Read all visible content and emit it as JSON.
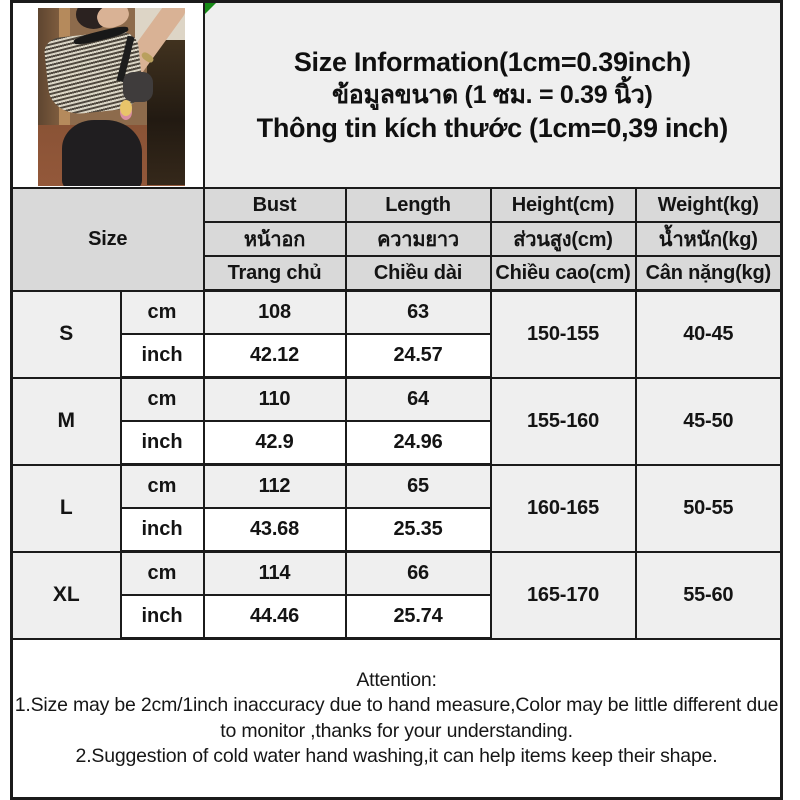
{
  "title": {
    "line1": "Size Information(1cm=0.39inch)",
    "line2": "ข้อมูลขนาด (1 ซม. = 0.39 นิ้ว)",
    "line3": "Thông tin kích thước (1cm=0,39 inch)"
  },
  "table": {
    "size_label": "Size",
    "unit_cm": "cm",
    "unit_inch": "inch",
    "columns": [
      {
        "en": "Bust",
        "th": "หน้าอก",
        "vi": "Trang chủ"
      },
      {
        "en": "Length",
        "th": "ความยาว",
        "vi": "Chiều dài"
      },
      {
        "en": "Height(cm)",
        "th": "ส่วนสูง(cm)",
        "vi": "Chiều cao(cm)"
      },
      {
        "en": "Weight(kg)",
        "th": "น้ำหนัก(kg)",
        "vi": "Cân nặng(kg)"
      }
    ],
    "rows": [
      {
        "label": "S",
        "cm": [
          "108",
          "63"
        ],
        "inch": [
          "42.12",
          "24.57"
        ],
        "height_cm": "150-155",
        "weight_kg": "40-45"
      },
      {
        "label": "M",
        "cm": [
          "110",
          "64"
        ],
        "inch": [
          "42.9",
          "24.96"
        ],
        "height_cm": "155-160",
        "weight_kg": "45-50"
      },
      {
        "label": "L",
        "cm": [
          "112",
          "65"
        ],
        "inch": [
          "43.68",
          "25.35"
        ],
        "height_cm": "160-165",
        "weight_kg": "50-55"
      },
      {
        "label": "XL",
        "cm": [
          "114",
          "66"
        ],
        "inch": [
          "44.46",
          "25.74"
        ],
        "height_cm": "165-170",
        "weight_kg": "55-60"
      }
    ]
  },
  "attention": {
    "heading": "Attention:",
    "items": [
      "1.Size may be 2cm/1inch inaccuracy due to hand measure,Color may be little different due to monitor ,thanks for your understanding.",
      "2.Suggestion of cold water hand washing,it can help items keep their shape."
    ]
  },
  "photo": {
    "alt": "model-wearing-striped-off-shoulder-top-mirror-selfie"
  },
  "colors": {
    "border": "#1b1b1b",
    "header_bg": "#d9d9d9",
    "alt_row_bg": "#efefef",
    "white_row_bg": "#ffffff",
    "marker_green": "#168a16"
  }
}
